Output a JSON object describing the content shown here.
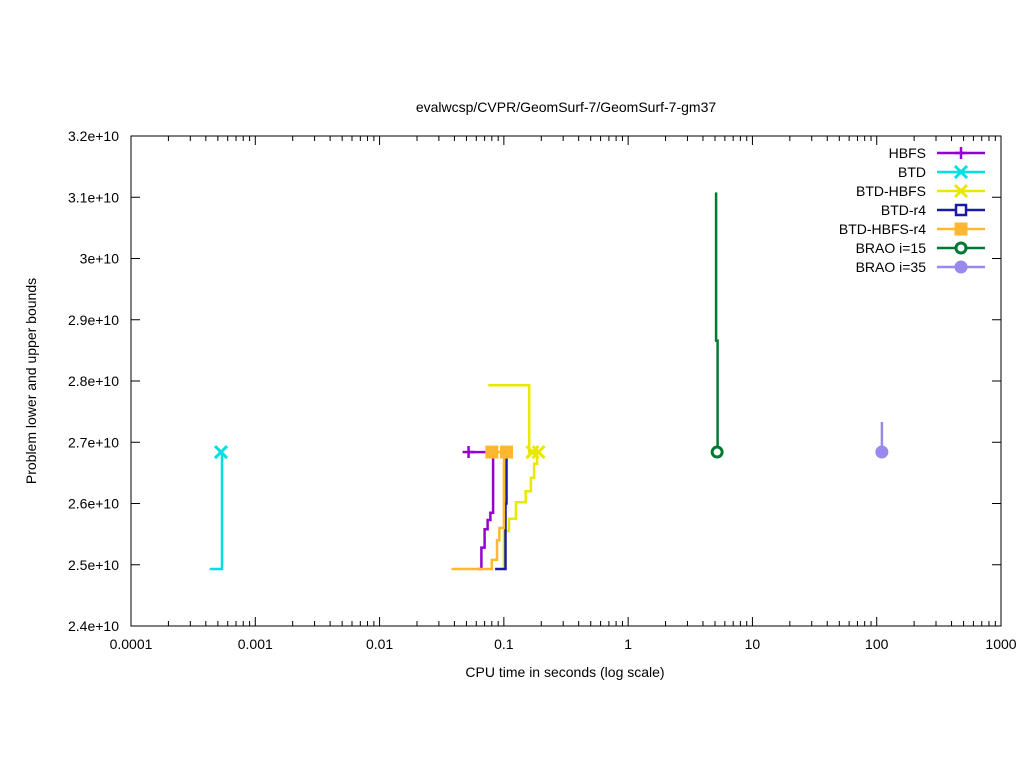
{
  "chart_data": {
    "type": "line",
    "title": "evalwcsp/CVPR/GeomSurf-7/GeomSurf-7-gm37",
    "xlabel": "CPU time in seconds (log scale)",
    "ylabel": "Problem lower and upper bounds",
    "x_scale": "log",
    "xlim": [
      0.0001,
      1000
    ],
    "ylim": [
      24000000000,
      32000000000
    ],
    "x_ticks": [
      {
        "value": 0.0001,
        "label": "0.0001"
      },
      {
        "value": 0.001,
        "label": "0.001"
      },
      {
        "value": 0.01,
        "label": "0.01"
      },
      {
        "value": 0.1,
        "label": "0.1"
      },
      {
        "value": 1,
        "label": "1"
      },
      {
        "value": 10,
        "label": "10"
      },
      {
        "value": 100,
        "label": "100"
      },
      {
        "value": 1000,
        "label": "1000"
      }
    ],
    "y_ticks": [
      {
        "value": 24000000000,
        "label": "2.4e+10"
      },
      {
        "value": 25000000000,
        "label": "2.5e+10"
      },
      {
        "value": 26000000000,
        "label": "2.6e+10"
      },
      {
        "value": 27000000000,
        "label": "2.7e+10"
      },
      {
        "value": 28000000000,
        "label": "2.8e+10"
      },
      {
        "value": 29000000000,
        "label": "2.9e+10"
      },
      {
        "value": 30000000000,
        "label": "3e+10"
      },
      {
        "value": 31000000000,
        "label": "3.1e+10"
      },
      {
        "value": 32000000000,
        "label": "3.2e+10"
      }
    ],
    "grid": false,
    "legend_position": "top-right",
    "series": [
      {
        "name": "HBFS",
        "color": "#9400d3",
        "marker": "plus",
        "lower": [
          [
            0.062,
            24930000000
          ],
          [
            0.066,
            24930000000
          ],
          [
            0.066,
            25280000000
          ],
          [
            0.07,
            25280000000
          ],
          [
            0.07,
            25580000000
          ],
          [
            0.074,
            25580000000
          ],
          [
            0.074,
            25730000000
          ],
          [
            0.078,
            25730000000
          ],
          [
            0.078,
            25850000000
          ],
          [
            0.082,
            25850000000
          ],
          [
            0.082,
            26840000000
          ]
        ],
        "upper": [
          [
            0.052,
            26840000000
          ],
          [
            0.082,
            26840000000
          ]
        ],
        "marker_points": [
          [
            0.052,
            26840000000
          ]
        ]
      },
      {
        "name": "BTD",
        "color": "#00e0e0",
        "marker": "x",
        "lower": [
          [
            0.00043,
            24930000000
          ],
          [
            0.00054,
            24930000000
          ],
          [
            0.00054,
            26840000000
          ]
        ],
        "upper": [],
        "marker_points": [
          [
            0.00053,
            26840000000
          ]
        ]
      },
      {
        "name": "BTD-HBFS",
        "color": "#e8e800",
        "marker": "x",
        "lower": [
          [
            0.095,
            24930000000
          ],
          [
            0.1,
            24930000000
          ],
          [
            0.1,
            25550000000
          ],
          [
            0.11,
            25550000000
          ],
          [
            0.11,
            25750000000
          ],
          [
            0.125,
            25750000000
          ],
          [
            0.125,
            26020000000
          ],
          [
            0.15,
            26020000000
          ],
          [
            0.15,
            26200000000
          ],
          [
            0.165,
            26200000000
          ],
          [
            0.165,
            26420000000
          ],
          [
            0.175,
            26420000000
          ],
          [
            0.175,
            26650000000
          ],
          [
            0.185,
            26650000000
          ],
          [
            0.185,
            26840000000
          ]
        ],
        "upper": [
          [
            0.075,
            27930000000
          ],
          [
            0.16,
            27930000000
          ],
          [
            0.16,
            26840000000
          ],
          [
            0.19,
            26840000000
          ]
        ],
        "marker_points": [
          [
            0.17,
            26840000000
          ],
          [
            0.19,
            26840000000
          ]
        ]
      },
      {
        "name": "BTD-r4",
        "color": "#1a1aa6",
        "marker": "square",
        "lower": [
          [
            0.085,
            24930000000
          ],
          [
            0.103,
            24930000000
          ],
          [
            0.103,
            26000000000
          ],
          [
            0.105,
            26000000000
          ],
          [
            0.105,
            26840000000
          ]
        ],
        "upper": [],
        "marker_points": []
      },
      {
        "name": "BTD-HBFS-r4",
        "color": "#ffb732",
        "marker": "square-filled",
        "lower": [
          [
            0.038,
            24930000000
          ],
          [
            0.08,
            24930000000
          ],
          [
            0.08,
            25080000000
          ],
          [
            0.088,
            25080000000
          ],
          [
            0.088,
            25400000000
          ],
          [
            0.092,
            25400000000
          ],
          [
            0.092,
            25600000000
          ],
          [
            0.1,
            25600000000
          ],
          [
            0.1,
            26840000000
          ]
        ],
        "upper": [
          [
            0.08,
            26840000000
          ],
          [
            0.105,
            26840000000
          ]
        ],
        "marker_points": [
          [
            0.08,
            26840000000
          ],
          [
            0.105,
            26840000000
          ]
        ]
      },
      {
        "name": "BRAO i=15",
        "color": "#007a33",
        "marker": "circle",
        "lower": [],
        "upper": [
          [
            5.1,
            31080000000
          ],
          [
            5.1,
            28660000000
          ],
          [
            5.25,
            28660000000
          ],
          [
            5.25,
            26840000000
          ]
        ],
        "marker_points": [
          [
            5.2,
            26840000000
          ]
        ]
      },
      {
        "name": "BRAO i=35",
        "color": "#9b88ee",
        "marker": "circle-filled",
        "lower": [],
        "upper": [
          [
            110,
            27330000000
          ],
          [
            110,
            26840000000
          ]
        ],
        "marker_points": [
          [
            110,
            26840000000
          ]
        ]
      }
    ]
  }
}
